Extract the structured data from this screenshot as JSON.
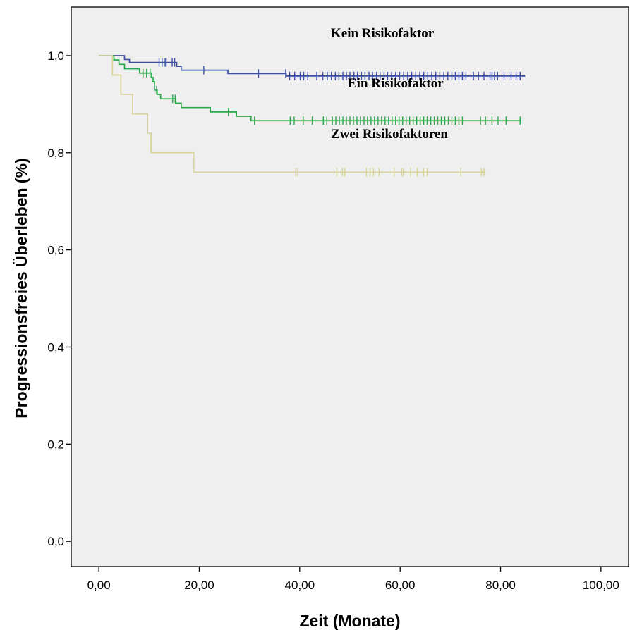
{
  "chart_data": {
    "type": "line",
    "subtype": "kaplan-meier",
    "title": "",
    "xlabel": "Zeit (Monate)",
    "ylabel": "Progressionsfreies Überleben (%)",
    "xlim": [
      -5.5,
      105.5
    ],
    "ylim": [
      -0.052,
      1.1
    ],
    "x_ticks": [
      "0,00",
      "20,00",
      "40,00",
      "60,00",
      "80,00",
      "100,00"
    ],
    "y_ticks": [
      "0,0",
      "0,2",
      "0,4",
      "0,6",
      "0,8",
      "1,0"
    ],
    "background": "#efefef",
    "grid": false,
    "legend": "none",
    "annotations": [
      "Kein Risikofaktor",
      "Ein Risikofaktor",
      "Zwei Risikofaktoren"
    ],
    "series": [
      {
        "color": "#3a4fa3",
        "steps": [
          [
            0,
            1.0
          ],
          [
            5.1,
            0.992
          ],
          [
            6.1,
            0.986
          ],
          [
            15.5,
            0.978
          ],
          [
            16.4,
            0.97
          ],
          [
            25.7,
            0.963
          ],
          [
            37.3,
            0.958
          ],
          [
            84.9,
            0.958
          ]
        ],
        "censor": [
          12.0,
          12.6,
          13.2,
          13.4,
          14.6,
          15.1,
          20.9,
          31.8,
          37.2,
          38.0,
          39.0,
          40.1,
          40.8,
          41.6,
          43.4,
          44.6,
          45.5,
          46.3,
          47.1,
          47.8,
          48.6,
          49.3,
          50.0,
          50.8,
          51.5,
          52.3,
          53.0,
          53.8,
          54.5,
          55.3,
          56.0,
          56.8,
          57.5,
          58.3,
          59.1,
          59.9,
          60.7,
          61.5,
          62.3,
          63.1,
          63.9,
          64.7,
          65.5,
          66.3,
          67.1,
          67.9,
          68.7,
          69.5,
          70.3,
          71.0,
          71.7,
          72.4,
          73.1,
          74.6,
          75.6,
          76.7,
          77.9,
          78.3,
          78.8,
          79.4,
          80.7,
          82.1,
          83.1,
          83.9
        ]
      },
      {
        "color": "#2aa84a",
        "steps": [
          [
            0,
            1.0
          ],
          [
            3.0,
            0.991
          ],
          [
            4.0,
            0.982
          ],
          [
            5.1,
            0.973
          ],
          [
            8.1,
            0.964
          ],
          [
            10.5,
            0.955
          ],
          [
            10.8,
            0.946
          ],
          [
            11.1,
            0.929
          ],
          [
            11.6,
            0.92
          ],
          [
            12.3,
            0.911
          ],
          [
            15.3,
            0.902
          ],
          [
            16.4,
            0.893
          ],
          [
            22.2,
            0.884
          ],
          [
            27.4,
            0.875
          ],
          [
            30.3,
            0.866
          ],
          [
            84.0,
            0.866
          ]
        ],
        "censor": [
          8.8,
          9.5,
          10.2,
          11.5,
          14.7,
          15.2,
          25.8,
          31.0,
          38.1,
          38.9,
          40.7,
          42.5,
          44.7,
          45.4,
          46.5,
          47.2,
          47.9,
          48.6,
          49.3,
          50.0,
          50.7,
          51.4,
          52.1,
          52.8,
          53.5,
          54.2,
          54.9,
          55.6,
          56.3,
          57.0,
          57.7,
          58.4,
          59.1,
          59.8,
          60.5,
          61.2,
          61.9,
          62.6,
          63.3,
          64.0,
          64.7,
          65.4,
          66.1,
          66.8,
          67.5,
          68.2,
          68.9,
          69.6,
          70.3,
          71.0,
          71.7,
          72.4,
          76.0,
          77.0,
          78.3,
          79.5,
          81.1,
          83.9
        ]
      },
      {
        "color": "#d8d49a",
        "steps": [
          [
            0,
            1.0
          ],
          [
            2.7,
            0.96
          ],
          [
            4.4,
            0.92
          ],
          [
            6.7,
            0.88
          ],
          [
            9.7,
            0.84
          ],
          [
            10.4,
            0.8
          ],
          [
            18.9,
            0.76
          ],
          [
            77.0,
            0.76
          ]
        ],
        "censor": [
          39.2,
          39.6,
          47.4,
          48.5,
          49.0,
          53.3,
          54.0,
          54.7,
          55.8,
          58.8,
          60.3,
          60.6,
          62.1,
          63.4,
          64.7,
          65.4,
          72.1,
          76.2,
          76.7
        ]
      }
    ]
  }
}
